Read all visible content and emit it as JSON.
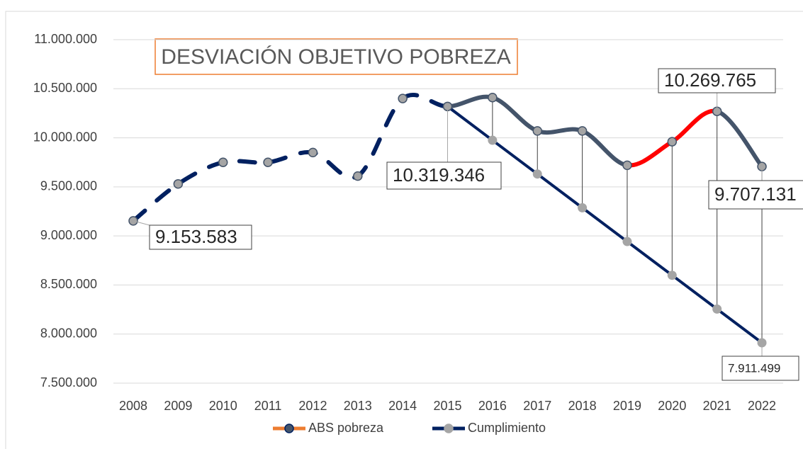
{
  "chart_data": {
    "type": "line",
    "title": "DESVIACIÓN OBJETIVO POBREZA",
    "categories": [
      "2008",
      "2009",
      "2010",
      "2011",
      "2012",
      "2013",
      "2014",
      "2015",
      "2016",
      "2017",
      "2018",
      "2019",
      "2020",
      "2021",
      "2022"
    ],
    "series": [
      {
        "name": "ABS pobreza",
        "color": "#ed7d31",
        "marker_color": "#44546a",
        "values": [
          9153583,
          9530000,
          9750000,
          9750000,
          9850000,
          9610000,
          10400000,
          10319346,
          10410000,
          10070000,
          10070000,
          9720000,
          9960000,
          10269765,
          9707131
        ],
        "value_labels": [
          "9.153.583",
          null,
          null,
          null,
          null,
          null,
          null,
          "10.319.346",
          null,
          null,
          null,
          null,
          null,
          "10.269.765",
          "9.707.131"
        ],
        "segments": [
          {
            "from": "2008",
            "to": "2015",
            "color": "#002060",
            "dashed": true
          },
          {
            "from": "2015",
            "to": "2019",
            "color": "#44546a",
            "dashed": false
          },
          {
            "from": "2019",
            "to": "2021",
            "color": "#ff0000",
            "dashed": false
          },
          {
            "from": "2021",
            "to": "2022",
            "color": "#44546a",
            "dashed": false
          }
        ]
      },
      {
        "name": "Cumplimiento",
        "color": "#002060",
        "marker_color": "#a5a5a5",
        "values": [
          null,
          null,
          null,
          null,
          null,
          null,
          null,
          10319346,
          9975000,
          9631000,
          9287000,
          8943000,
          8599000,
          8255000,
          7911499
        ],
        "value_labels": [
          null,
          null,
          null,
          null,
          null,
          null,
          null,
          null,
          null,
          null,
          null,
          null,
          null,
          null,
          "7.911.499"
        ]
      }
    ],
    "ylim": [
      7500000,
      11000000
    ],
    "yticks": [
      {
        "value": 7500000,
        "label": "7.500.000"
      },
      {
        "value": 8000000,
        "label": "8.000.000"
      },
      {
        "value": 8500000,
        "label": "8.500.000"
      },
      {
        "value": 9000000,
        "label": "9.000.000"
      },
      {
        "value": 9500000,
        "label": "9.500.000"
      },
      {
        "value": 10000000,
        "label": "10.000.000"
      },
      {
        "value": 10500000,
        "label": "10.500.000"
      },
      {
        "value": 11000000,
        "label": "11.000.000"
      }
    ],
    "grid": true,
    "drop_lines": true,
    "legend": "bottom"
  }
}
